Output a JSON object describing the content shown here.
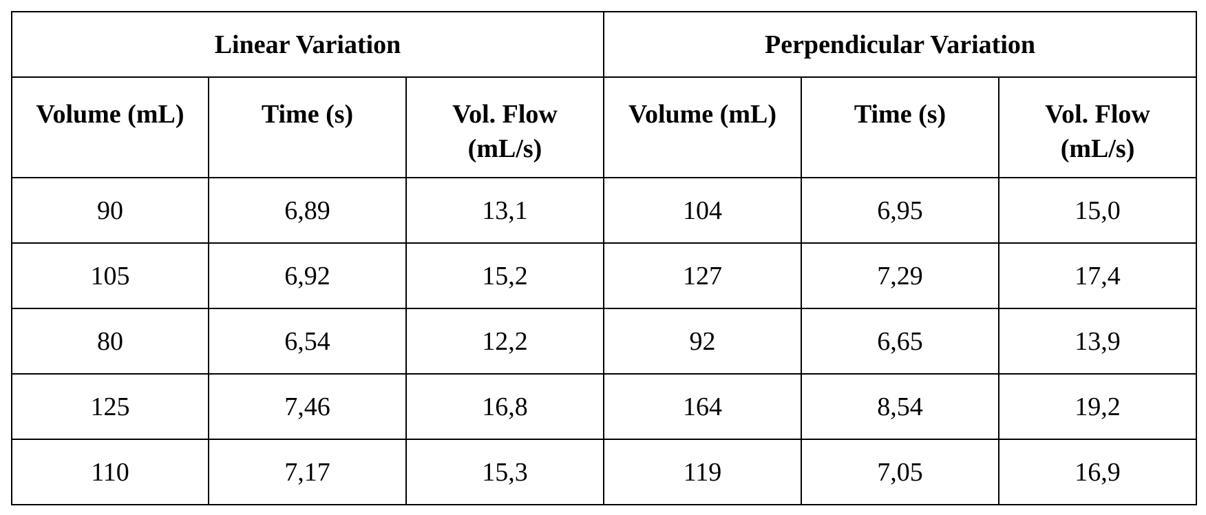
{
  "groups": {
    "linear": "Linear Variation",
    "perpendicular": "Perpendicular Variation"
  },
  "columns": {
    "volume": "Volume (mL)",
    "time": "Time (s)",
    "flow_line1": "Vol. Flow",
    "flow_line2": "(mL/s)"
  },
  "rows": [
    {
      "lin_volume": "90",
      "lin_time": "6,89",
      "lin_flow": "13,1",
      "perp_volume": "104",
      "perp_time": "6,95",
      "perp_flow": "15,0"
    },
    {
      "lin_volume": "105",
      "lin_time": "6,92",
      "lin_flow": "15,2",
      "perp_volume": "127",
      "perp_time": "7,29",
      "perp_flow": "17,4"
    },
    {
      "lin_volume": "80",
      "lin_time": "6,54",
      "lin_flow": "12,2",
      "perp_volume": "92",
      "perp_time": "6,65",
      "perp_flow": "13,9"
    },
    {
      "lin_volume": "125",
      "lin_time": "7,46",
      "lin_flow": "16,8",
      "perp_volume": "164",
      "perp_time": "8,54",
      "perp_flow": "19,2"
    },
    {
      "lin_volume": "110",
      "lin_time": "7,17",
      "lin_flow": "15,3",
      "perp_volume": "119",
      "perp_time": "7,05",
      "perp_flow": "16,9"
    }
  ]
}
